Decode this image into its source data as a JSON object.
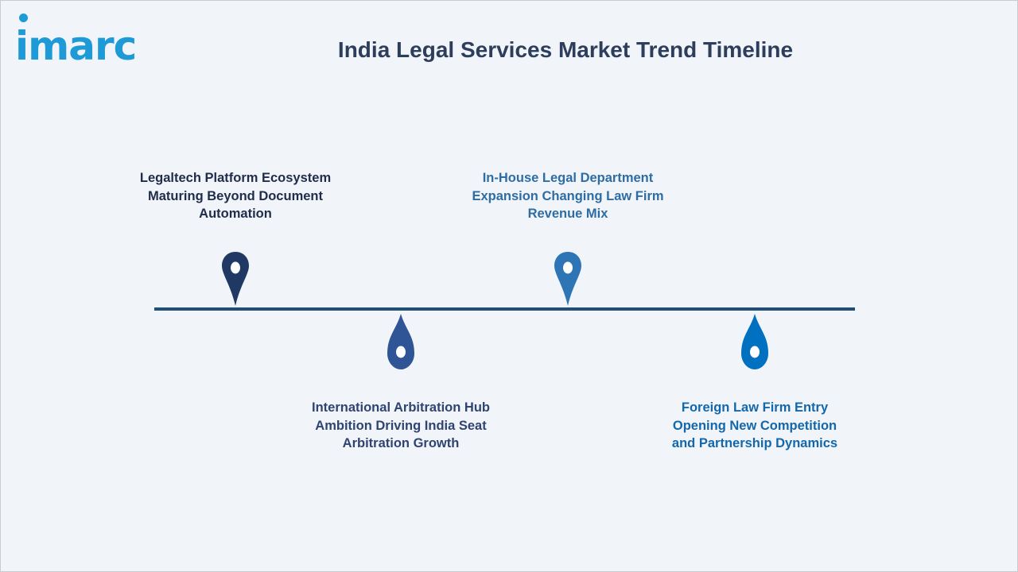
{
  "logo": {
    "text": "imarc"
  },
  "title": "India Legal Services Market Trend Timeline",
  "colors": {
    "background": "#f1f4f9",
    "axis": "#1f4e79",
    "title": "#2d3e5c",
    "logo": "#1e9ad6"
  },
  "milestones": [
    {
      "label_lines": [
        "Legaltech Platform Ecosystem",
        "Maturing Beyond Document",
        "Automation"
      ],
      "pin_shape": "map-pin",
      "color": "#1f3864",
      "text_color": "#1f2d4a",
      "position": "above"
    },
    {
      "label_lines": [
        "International Arbitration Hub",
        "Ambition Driving India Seat",
        "Arbitration Growth"
      ],
      "pin_shape": "droplet",
      "color": "#2f5597",
      "text_color": "#2f4470",
      "position": "below"
    },
    {
      "label_lines": [
        "In-House Legal Department",
        "Expansion Changing Law Firm",
        "Revenue Mix"
      ],
      "pin_shape": "map-pin",
      "color": "#2e75b6",
      "text_color": "#2e6da4",
      "position": "above"
    },
    {
      "label_lines": [
        "Foreign Law Firm Entry",
        "Opening New Competition",
        "and Partnership Dynamics"
      ],
      "pin_shape": "droplet",
      "color": "#0070c0",
      "text_color": "#1268ab",
      "position": "below"
    }
  ]
}
